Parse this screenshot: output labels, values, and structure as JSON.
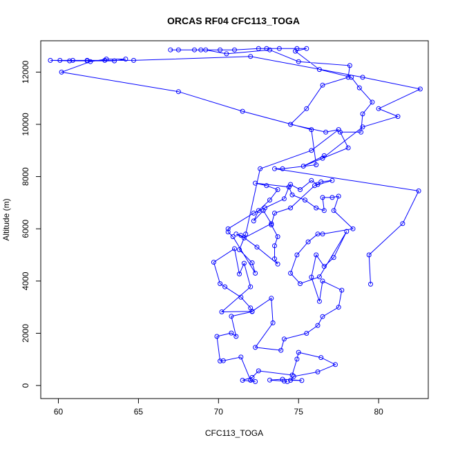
{
  "chart_data": {
    "type": "scatter",
    "title": "ORCAS RF04 CFC113_TOGA",
    "xlabel": "CFC113_TOGA",
    "ylabel": "Altitude (m)",
    "xlim": [
      58.9,
      83.1
    ],
    "ylim": [
      -500,
      13200
    ],
    "x_ticks": [
      60,
      65,
      70,
      75,
      80
    ],
    "y_ticks": [
      0,
      2000,
      4000,
      6000,
      8000,
      10000,
      12000
    ],
    "grid": false,
    "color": "#0000ff",
    "series": [
      {
        "points": [
          [
            74.3,
            150
          ],
          [
            74.1,
            170
          ],
          [
            73.2,
            210
          ],
          [
            74.0,
            240
          ],
          [
            75.2,
            190
          ],
          [
            74.5,
            200
          ],
          [
            74.7,
            350
          ],
          [
            76.2,
            520
          ],
          [
            77.3,
            800
          ],
          [
            76.4,
            1070
          ],
          [
            75.0,
            1270
          ],
          [
            74.9,
            1010
          ],
          [
            74.6,
            400
          ],
          [
            72.5,
            560
          ],
          [
            72.1,
            310
          ],
          [
            71.5,
            200
          ],
          [
            72.3,
            150
          ],
          [
            72.0,
            200
          ],
          [
            71.4,
            1090
          ],
          [
            70.3,
            950
          ],
          [
            70.1,
            940
          ],
          [
            69.9,
            1880
          ],
          [
            70.8,
            2010
          ],
          [
            71.1,
            1880
          ],
          [
            70.8,
            2650
          ],
          [
            72.1,
            2830
          ],
          [
            72.0,
            2970
          ],
          [
            71.4,
            3380
          ],
          [
            70.4,
            3780
          ],
          [
            70.1,
            3900
          ],
          [
            69.7,
            4720
          ],
          [
            71.0,
            5240
          ],
          [
            71.3,
            4270
          ],
          [
            71.6,
            4680
          ],
          [
            72.0,
            3780
          ],
          [
            70.2,
            2820
          ],
          [
            72.1,
            2840
          ],
          [
            73.3,
            3340
          ],
          [
            73.4,
            2400
          ],
          [
            72.3,
            1460
          ],
          [
            73.9,
            1350
          ],
          [
            74.1,
            1780
          ],
          [
            75.5,
            2000
          ],
          [
            76.2,
            2300
          ],
          [
            76.5,
            2640
          ],
          [
            77.5,
            3000
          ],
          [
            77.7,
            3650
          ],
          [
            76.5,
            4000
          ],
          [
            76.3,
            3220
          ],
          [
            75.8,
            4150
          ],
          [
            76.1,
            5000
          ],
          [
            76.6,
            4560
          ],
          [
            77.2,
            4900
          ],
          [
            78.0,
            5900
          ],
          [
            76.3,
            4160
          ],
          [
            75.1,
            3900
          ],
          [
            74.5,
            4300
          ],
          [
            74.9,
            5000
          ],
          [
            75.6,
            5500
          ],
          [
            76.2,
            5800
          ],
          [
            76.5,
            5800
          ],
          [
            78.4,
            6000
          ],
          [
            77.2,
            6700
          ],
          [
            77.5,
            7250
          ],
          [
            77.1,
            7200
          ],
          [
            76.5,
            7200
          ],
          [
            76.6,
            6700
          ],
          [
            76.1,
            6800
          ],
          [
            75.4,
            7100
          ],
          [
            74.6,
            7300
          ],
          [
            74.4,
            7600
          ],
          [
            74.5,
            7700
          ],
          [
            75.1,
            7500
          ],
          [
            75.8,
            7850
          ],
          [
            76.2,
            7700
          ],
          [
            76.4,
            7800
          ],
          [
            77.1,
            7850
          ],
          [
            76.0,
            7650
          ],
          [
            74.5,
            6800
          ],
          [
            73.5,
            6600
          ],
          [
            73.3,
            6150
          ],
          [
            73.7,
            5700
          ],
          [
            73.5,
            5350
          ],
          [
            73.5,
            4850
          ],
          [
            73.7,
            4650
          ],
          [
            72.4,
            5300
          ],
          [
            71.4,
            5750
          ],
          [
            71.1,
            5800
          ],
          [
            71.6,
            5650
          ],
          [
            73.3,
            6200
          ],
          [
            72.8,
            6700
          ],
          [
            72.2,
            6300
          ],
          [
            72.5,
            6700
          ],
          [
            73.2,
            7100
          ],
          [
            73.7,
            7500
          ],
          [
            73.0,
            7650
          ],
          [
            72.3,
            7750
          ],
          [
            74.4,
            7600
          ],
          [
            74.1,
            7150
          ],
          [
            72.9,
            6800
          ],
          [
            72.2,
            6600
          ],
          [
            70.6,
            6000
          ],
          [
            70.6,
            5880
          ],
          [
            70.9,
            5700
          ],
          [
            72.3,
            4300
          ],
          [
            72.1,
            4700
          ],
          [
            71.3,
            5200
          ],
          [
            71.7,
            5800
          ],
          [
            72.6,
            8300
          ],
          [
            75.8,
            9000
          ],
          [
            77.5,
            9800
          ],
          [
            76.7,
            9700
          ],
          [
            74.5,
            10000
          ],
          [
            75.5,
            10600
          ],
          [
            76.5,
            11500
          ],
          [
            78.1,
            11800
          ],
          [
            78.2,
            12250
          ],
          [
            75.0,
            12400
          ],
          [
            73.2,
            12850
          ],
          [
            70.5,
            12700
          ],
          [
            69.2,
            12850
          ],
          [
            68.5,
            12850
          ],
          [
            67.5,
            12850
          ],
          [
            67.0,
            12850
          ],
          [
            68.9,
            12850
          ],
          [
            70.1,
            12850
          ],
          [
            71.0,
            12850
          ],
          [
            72.5,
            12900
          ],
          [
            73.0,
            12900
          ],
          [
            73.8,
            12900
          ],
          [
            74.9,
            12900
          ],
          [
            75.5,
            12900
          ],
          [
            74.8,
            12800
          ],
          [
            76.3,
            12100
          ],
          [
            78.3,
            11800
          ],
          [
            78.8,
            11400
          ],
          [
            79.6,
            10850
          ],
          [
            79.0,
            10400
          ],
          [
            78.9,
            9700
          ],
          [
            77.6,
            9700
          ],
          [
            78.1,
            9100
          ],
          [
            75.3,
            8400
          ],
          [
            76.6,
            8800
          ],
          [
            76.5,
            8700
          ],
          [
            79.0,
            9900
          ],
          [
            81.2,
            10300
          ],
          [
            80.0,
            10600
          ],
          [
            82.6,
            11350
          ],
          [
            79.0,
            11800
          ],
          [
            72.0,
            12600
          ],
          [
            64.7,
            12450
          ],
          [
            62.9,
            12450
          ],
          [
            61.8,
            12450
          ],
          [
            60.9,
            12450
          ],
          [
            60.1,
            12450
          ],
          [
            59.5,
            12450
          ],
          [
            60.7,
            12430
          ],
          [
            61.8,
            12430
          ],
          [
            63.5,
            12430
          ],
          [
            64.2,
            12500
          ],
          [
            63.0,
            12500
          ],
          [
            62.0,
            12400
          ],
          [
            60.2,
            12000
          ],
          [
            67.5,
            11250
          ],
          [
            71.5,
            10500
          ],
          [
            75.8,
            9800
          ],
          [
            76.1,
            8450
          ],
          [
            74.0,
            8300
          ],
          [
            73.5,
            8300
          ],
          [
            82.5,
            7450
          ],
          [
            81.5,
            6200
          ],
          [
            79.4,
            5000
          ],
          [
            79.5,
            3880
          ]
        ]
      }
    ]
  }
}
